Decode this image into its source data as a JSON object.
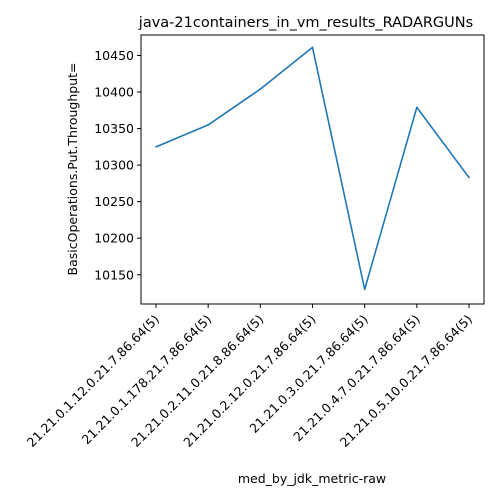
{
  "chart_data": {
    "type": "line",
    "title": "java-21containers_in_vm_results_RADARGUNs",
    "xlabel": "med_by_jdk_metric-raw",
    "ylabel": "BasicOperations.Put.Throughput=",
    "categories": [
      "21.21.0.1.12.0.21.7.86.64(5)",
      "21.21.0.1.178.21.7.86.64(5)",
      "21.21.0.2.11.0.21.8.86.64(5)",
      "21.21.0.2.12.0.21.7.86.64(5)",
      "21.21.0.3.0.21.7.86.64(5)",
      "21.21.0.4.7.0.21.7.86.64(5)",
      "21.21.0.5.10.0.21.7.86.64(5)"
    ],
    "series": [
      {
        "values": [
          10325,
          10355,
          10404,
          10461,
          10130,
          10379,
          10283
        ],
        "color": "#1f77b4"
      }
    ],
    "ylim": [
      10110,
      10478
    ],
    "yticks": [
      10150,
      10200,
      10250,
      10300,
      10350,
      10400,
      10450
    ],
    "grid": false
  }
}
